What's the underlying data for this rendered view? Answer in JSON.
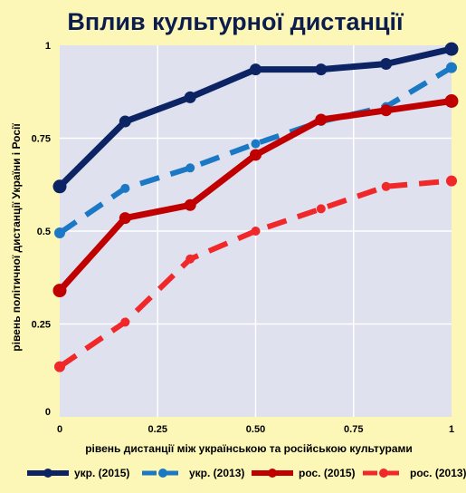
{
  "chart_data": {
    "type": "line",
    "title": "Вплив культурної дистанції",
    "xlabel": "рівень дистанції між українською та російською культурами",
    "ylabel": "рівень політичної дистанції України і Росії",
    "xlim": [
      0,
      1
    ],
    "ylim": [
      0,
      1
    ],
    "x_ticks": [
      "0",
      "0.25",
      "0.50",
      "0.75",
      "1"
    ],
    "y_ticks": [
      "0",
      "0.25",
      "0.5",
      "0.75",
      "1"
    ],
    "grid": true,
    "legend_position": "bottom",
    "series": [
      {
        "name": "укр. (2015)",
        "color": "#0c2464",
        "style": "solid",
        "x": [
          0,
          0.167,
          0.333,
          0.5,
          0.667,
          0.833,
          1
        ],
        "y": [
          0.62,
          0.795,
          0.86,
          0.935,
          0.935,
          0.95,
          0.99
        ]
      },
      {
        "name": "укр. (2013)",
        "color": "#1a78c4",
        "style": "dashed",
        "x": [
          0,
          0.167,
          0.333,
          0.5,
          0.667,
          0.833,
          1
        ],
        "y": [
          0.495,
          0.615,
          0.67,
          0.735,
          0.795,
          0.835,
          0.94
        ]
      },
      {
        "name": "рос. (2015)",
        "color": "#c00000",
        "style": "solid",
        "x": [
          0,
          0.167,
          0.333,
          0.5,
          0.667,
          0.833,
          1
        ],
        "y": [
          0.34,
          0.535,
          0.57,
          0.705,
          0.8,
          0.825,
          0.85
        ]
      },
      {
        "name": "рос. (2013)",
        "color": "#f0282a",
        "style": "dashed",
        "x": [
          0,
          0.167,
          0.333,
          0.5,
          0.667,
          0.833,
          1
        ],
        "y": [
          0.135,
          0.255,
          0.425,
          0.5,
          0.56,
          0.62,
          0.635
        ]
      }
    ]
  }
}
